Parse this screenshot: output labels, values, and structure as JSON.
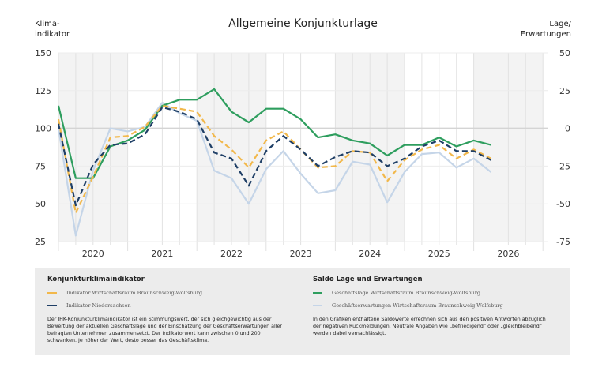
{
  "header": {
    "title": "Allgemeine Konjunkturlage",
    "left_axis_title": [
      "Klima-",
      "indikator"
    ],
    "right_axis_title": [
      "Lage/",
      "Erwartungen"
    ]
  },
  "chart_data": {
    "type": "line",
    "title": "Allgemeine Konjunkturlage",
    "x_tick_labels": [
      "2020",
      "2021",
      "2022",
      "2023",
      "2024",
      "2025",
      "2026"
    ],
    "x_periods_per_year": 4,
    "left_axis": {
      "label": "Klima-indikator",
      "ylim": [
        25,
        150
      ],
      "ticks": [
        150,
        125,
        100,
        75,
        50,
        25
      ]
    },
    "right_axis": {
      "label": "Lage/Erwartungen",
      "ylim": [
        -75,
        50
      ],
      "ticks": [
        50,
        25,
        0,
        -25,
        -50,
        -75
      ]
    },
    "grid": true,
    "series": [
      {
        "name": "Indikator Wirtschaftsraum Braunschweig-Wolfsburg",
        "axis": "left",
        "color": "#f2b84b",
        "dash": true,
        "values": [
          106,
          44,
          68,
          94,
          95,
          101,
          115,
          113,
          111,
          95,
          86,
          74,
          92,
          98,
          86,
          74,
          75,
          85,
          84,
          65,
          79,
          86,
          89,
          80,
          86,
          80
        ]
      },
      {
        "name": "Indikator Niedersachsen",
        "axis": "left",
        "color": "#1f3f66",
        "dash": true,
        "values": [
          103,
          49,
          76,
          89,
          90,
          96,
          114,
          111,
          106,
          84,
          80,
          62,
          85,
          95,
          86,
          75,
          81,
          85,
          84,
          75,
          80,
          88,
          92,
          85,
          85,
          79
        ]
      },
      {
        "name": "Geschäftslage Wirtschaftsraum Braunschweig-Wolfsburg",
        "axis": "right",
        "color": "#2e9e5e",
        "dash": false,
        "values": [
          15,
          -33,
          -33,
          -12,
          -8,
          -1,
          15,
          19,
          19,
          26,
          11,
          4,
          13,
          13,
          6,
          -6,
          -4,
          -8,
          -10,
          -18,
          -11,
          -11,
          -6,
          -12,
          -8,
          -11
        ]
      },
      {
        "name": "Geschäftserwartungen Wirtschaftsraum Braunschweig-Wolfsburg",
        "axis": "right",
        "color": "#c5d5e8",
        "dash": false,
        "values": [
          0,
          -71,
          -28,
          0,
          -2,
          1,
          17,
          10,
          5,
          -28,
          -33,
          -50,
          -27,
          -15,
          -30,
          -43,
          -41,
          -22,
          -24,
          -49,
          -29,
          -17,
          -16,
          -26,
          -20,
          -29
        ]
      }
    ]
  },
  "legend": {
    "left": {
      "title": "Konjunkturklimaindikator",
      "items": [
        "Indikator Wirtschaftsraum Braunschweig-Wolfsburg",
        "Indikator Niedersachsen"
      ],
      "text": "Der IHK-Konjunkturklimaindikator ist ein Stimmungswert, der sich gleichgewichtig aus der Bewertung der aktuellen Geschäftslage und der Einschätzung der Geschäftserwartungen aller befragten Unternehmen zusammensetzt. Der Indikatorwert kann zwischen 0 und 200 schwanken. Je höher der Wert, desto besser das Geschäftsklima."
    },
    "right": {
      "title": "Saldo Lage und Erwartungen",
      "items": [
        "Geschäftslage Wirtschaftsraum Braunschweig-Wolfsburg",
        "Geschäftserwartungen Wirtschaftsraum Braunschweig-Wolfsburg"
      ],
      "text": "In den Grafiken enthaltene Saldowerte errechnen sich aus den positiven Antworten abzüglich der negativen Rückmeldungen. Neutrale Angaben wie „befriedigend“ oder „gleichbleibend“ werden dabei vernachlässigt."
    }
  }
}
